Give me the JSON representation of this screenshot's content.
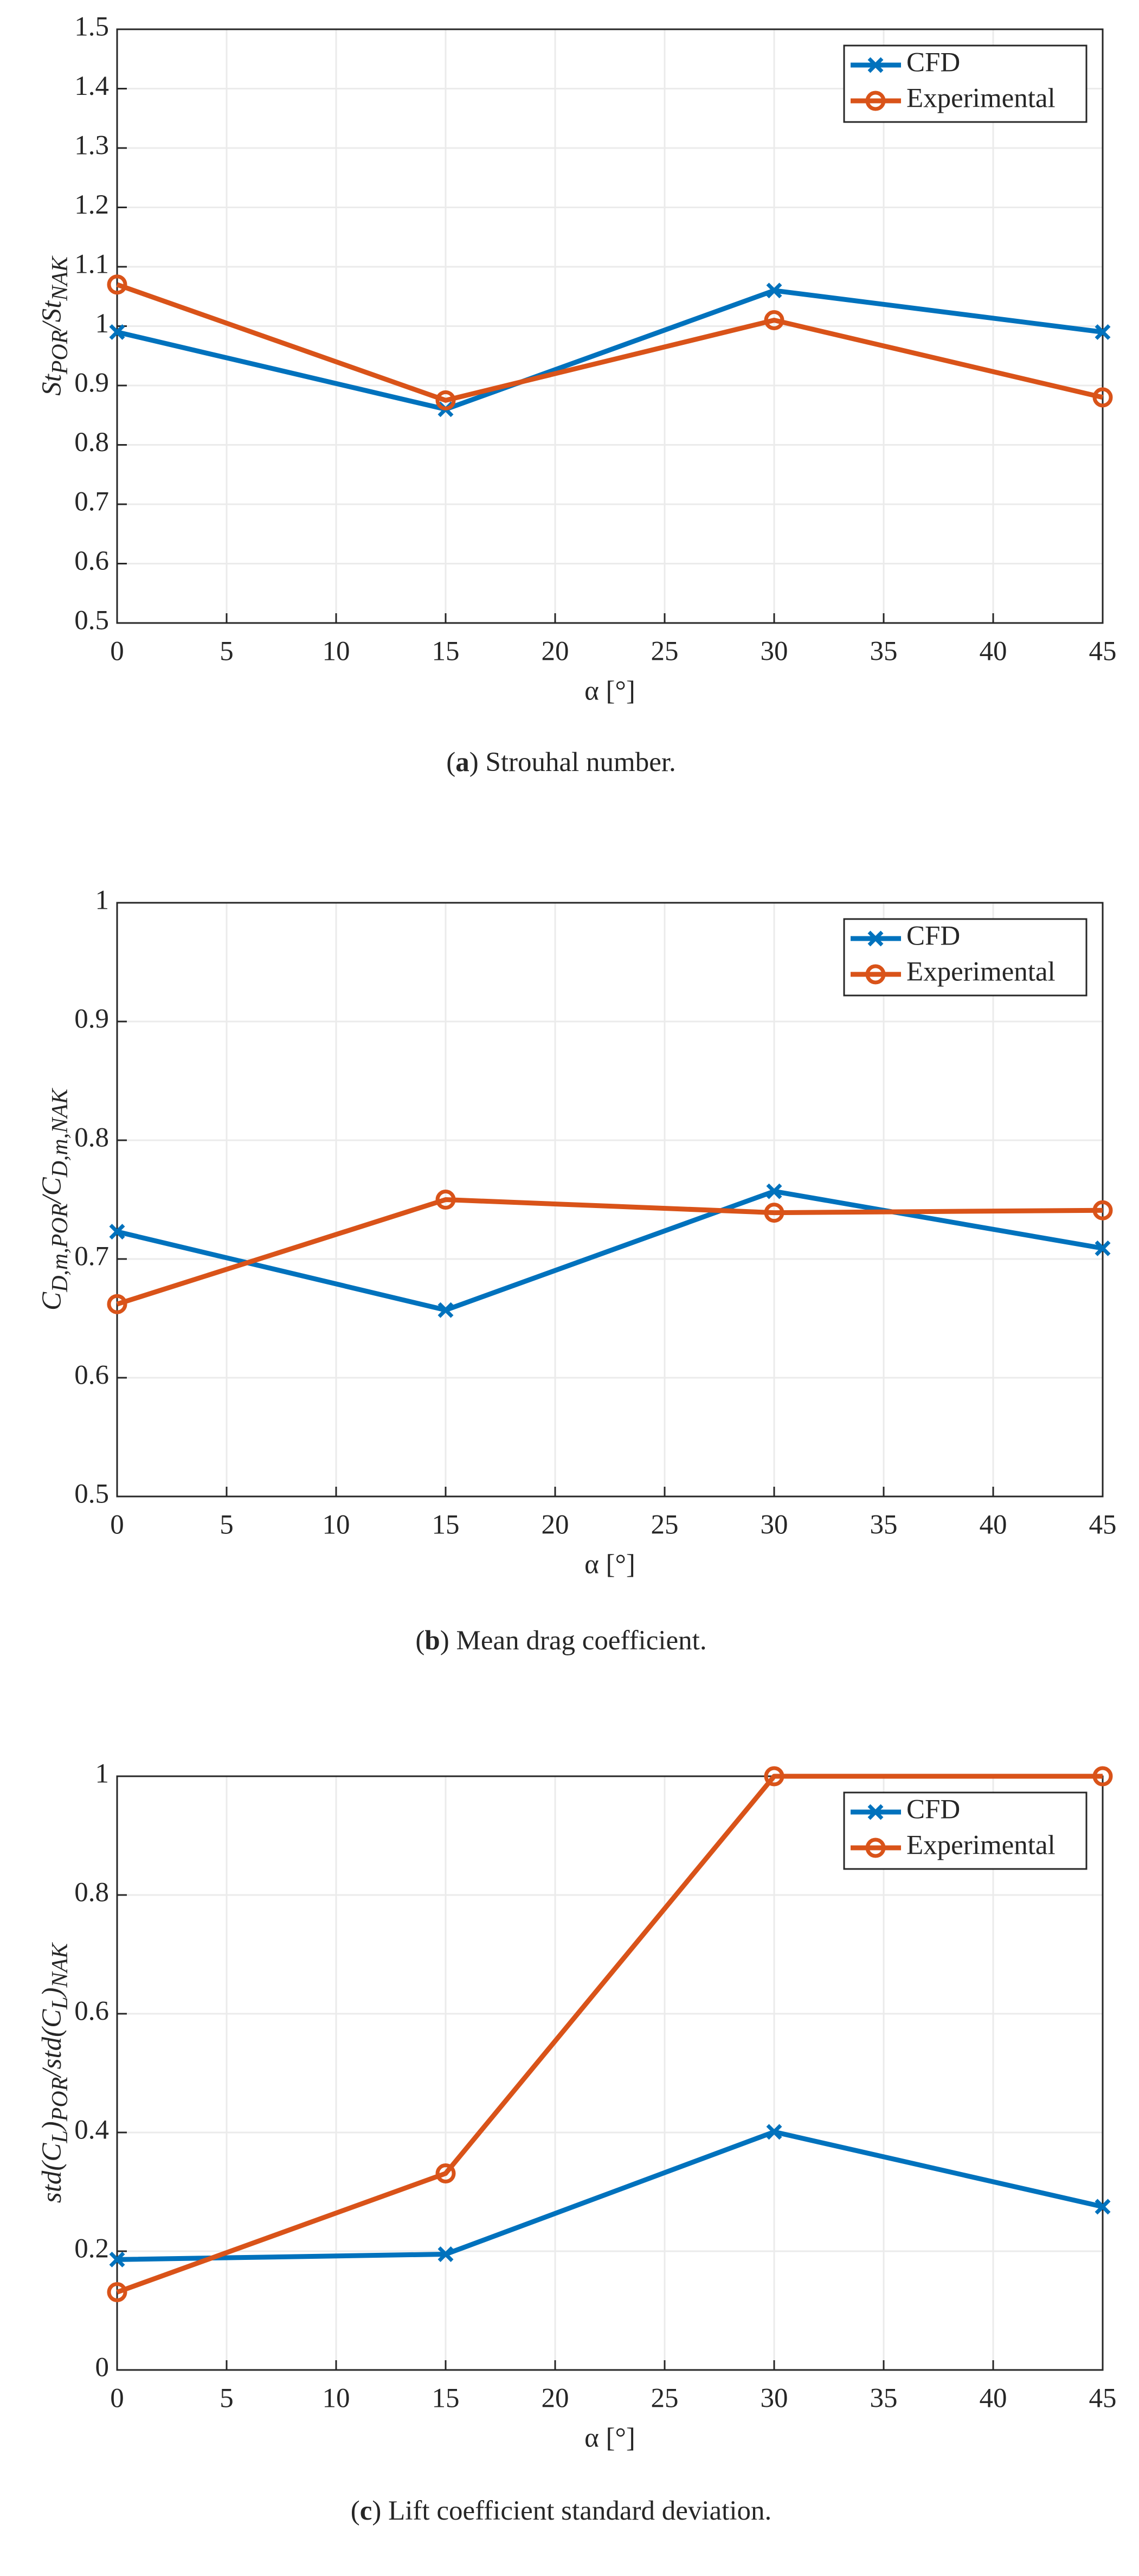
{
  "chart_data": [
    {
      "type": "line",
      "ylabel": [
        [
          "St",
          "POR"
        ],
        [
          "/St",
          "NAK"
        ]
      ],
      "xlabel": "α [°]",
      "caption": [
        "(",
        "a",
        ") Strouhal number."
      ],
      "x": [
        0,
        15,
        30,
        45
      ],
      "series": [
        {
          "name": "CFD",
          "color": "#0072bd",
          "marker": "x",
          "values": [
            0.99,
            0.86,
            1.06,
            0.99
          ]
        },
        {
          "name": "Experimental",
          "color": "#d95319",
          "marker": "o",
          "values": [
            1.07,
            0.875,
            1.01,
            0.88
          ]
        }
      ],
      "xlim": [
        0,
        45
      ],
      "xticks": [
        0,
        5,
        10,
        15,
        20,
        25,
        30,
        35,
        40,
        45
      ],
      "ylim": [
        0.5,
        1.5
      ],
      "yticks": [
        0.5,
        0.6,
        0.7,
        0.8,
        0.9,
        1,
        1.1,
        1.2,
        1.3,
        1.4,
        1.5
      ],
      "grid": true,
      "legend": "upper right"
    },
    {
      "type": "line",
      "ylabel": [
        [
          "C",
          "D,m,POR"
        ],
        [
          "/C",
          "D,m,NAK"
        ]
      ],
      "xlabel": "α [°]",
      "caption": [
        "(",
        "b",
        ") Mean drag coefficient."
      ],
      "x": [
        0,
        15,
        30,
        45
      ],
      "series": [
        {
          "name": "CFD",
          "color": "#0072bd",
          "marker": "x",
          "values": [
            0.723,
            0.657,
            0.757,
            0.709
          ]
        },
        {
          "name": "Experimental",
          "color": "#d95319",
          "marker": "o",
          "values": [
            0.662,
            0.75,
            0.739,
            0.741
          ]
        }
      ],
      "xlim": [
        0,
        45
      ],
      "xticks": [
        0,
        5,
        10,
        15,
        20,
        25,
        30,
        35,
        40,
        45
      ],
      "ylim": [
        0.5,
        1
      ],
      "yticks": [
        0.5,
        0.6,
        0.7,
        0.8,
        0.9,
        1
      ],
      "grid": true,
      "legend": "upper right"
    },
    {
      "type": "line",
      "ylabel": [
        [
          "std(C",
          "L"
        ],
        [
          ")",
          "POR"
        ],
        [
          "/std(C",
          "L"
        ],
        [
          ")",
          "NAK"
        ]
      ],
      "xlabel": "α [°]",
      "caption": [
        "(",
        "c",
        ") Lift coefficient standard deviation."
      ],
      "x": [
        0,
        15,
        30,
        45
      ],
      "series": [
        {
          "name": "CFD",
          "color": "#0072bd",
          "marker": "x",
          "values": [
            0.186,
            0.195,
            0.401,
            0.275
          ]
        },
        {
          "name": "Experimental",
          "color": "#d95319",
          "marker": "o",
          "values": [
            0.131,
            0.331,
            1,
            1
          ]
        }
      ],
      "xlim": [
        0,
        45
      ],
      "xticks": [
        0,
        5,
        10,
        15,
        20,
        25,
        30,
        35,
        40,
        45
      ],
      "ylim": [
        0,
        1
      ],
      "yticks": [
        0,
        0.2,
        0.4,
        0.6,
        0.8,
        1
      ],
      "grid": true,
      "legend": "upper right"
    }
  ]
}
